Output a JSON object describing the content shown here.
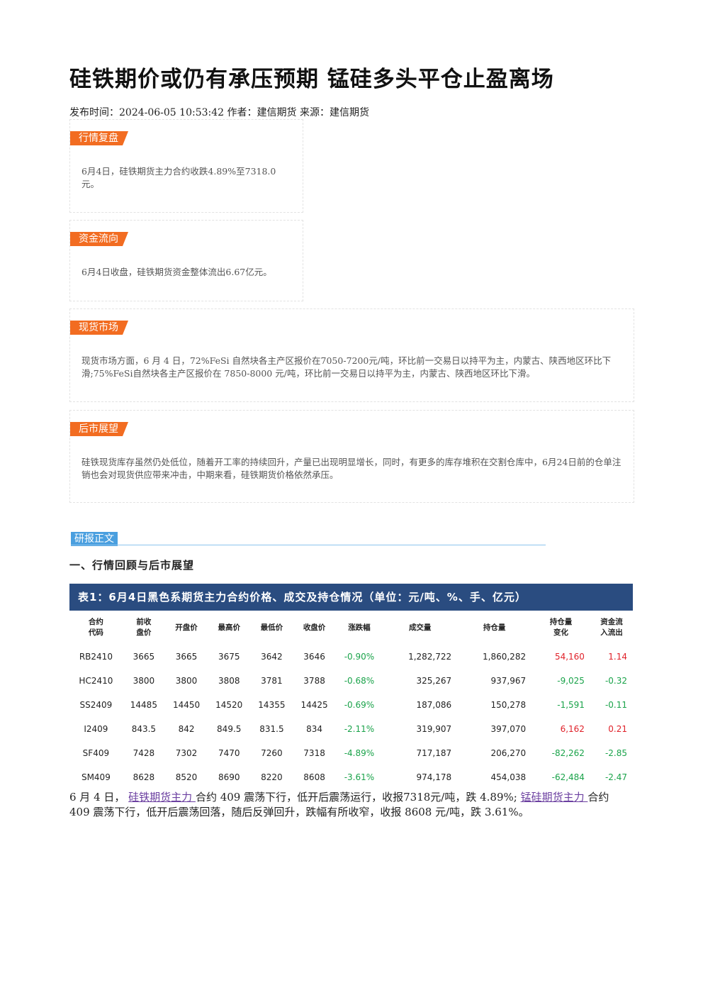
{
  "title": "硅铁期价或仍有承压预期 锰硅多头平仓止盈离场",
  "meta": "发布时间：2024-06-05 10:53:42 作者：建信期货 来源：建信期货",
  "sections": [
    {
      "tag": "行情复盘",
      "text": "6月4日，硅铁期货主力合约收跌4.89%至7318.0元。"
    },
    {
      "tag": "资金流向",
      "text": "6月4日收盘，硅铁期货资金整体流出6.67亿元。"
    },
    {
      "tag": "现货市场",
      "text": "现货市场方面，6 月 4 日，72%FeSi 自然块各主产区报价在7050-7200元/吨，环比前一交易日以持平为主，内蒙古、陕西地区环比下滑;75%FeSi自然块各主产区报价在 7850-8000 元/吨，环比前一交易日以持平为主，内蒙古、陕西地区环比下滑。"
    },
    {
      "tag": "后市展望",
      "text": "硅铁现货库存虽然仍处低位，随着开工率的持续回升，产量已出现明显增长，同时，有更多的库存堆积在交割仓库中，6月24日前的仓单注销也会对现货供应带来冲击，中期来看，硅铁期货价格依然承压。"
    }
  ],
  "report_tag": "研报正文",
  "heading": "一、行情回顾与后市展望",
  "table": {
    "caption": "表1：6月4日黑色系期货主力合约价格、成交及持仓情况（单位：元/吨、%、手、亿元）",
    "headers": [
      [
        "合约",
        "代码"
      ],
      [
        "前收",
        "盘价"
      ],
      [
        "开盘价"
      ],
      [
        "最高价"
      ],
      [
        "最低价"
      ],
      [
        "收盘价"
      ],
      [
        "涨跌幅"
      ],
      [
        "成交量"
      ],
      [
        "持仓量"
      ],
      [
        "持仓量",
        "变化"
      ],
      [
        "资金流",
        "入流出"
      ]
    ],
    "rows": [
      [
        "RB2410",
        "3665",
        "3665",
        "3675",
        "3642",
        "3646",
        "-0.90%",
        "1,282,722",
        "1,860,282",
        "54,160",
        "1.14"
      ],
      [
        "HC2410",
        "3800",
        "3800",
        "3808",
        "3781",
        "3788",
        "-0.68%",
        "325,267",
        "937,967",
        "-9,025",
        "-0.32"
      ],
      [
        "SS2409",
        "14485",
        "14450",
        "14520",
        "14355",
        "14425",
        "-0.69%",
        "187,086",
        "150,278",
        "-1,591",
        "-0.11"
      ],
      [
        "I2409",
        "843.5",
        "842",
        "849.5",
        "831.5",
        "834",
        "-2.11%",
        "319,907",
        "397,070",
        "6,162",
        "0.21"
      ],
      [
        "SF409",
        "7428",
        "7302",
        "7470",
        "7260",
        "7318",
        "-4.89%",
        "717,187",
        "206,270",
        "-82,262",
        "-2.85"
      ],
      [
        "SM409",
        "8628",
        "8520",
        "8690",
        "8220",
        "8608",
        "-3.61%",
        "974,178",
        "454,038",
        "-62,484",
        "-2.47"
      ]
    ]
  },
  "paragraph": [
    {
      "text": "6 月 4 日， "
    },
    {
      "link": "硅铁期货主力 "
    },
    {
      "text": "合约 409 震荡下行，低开后震荡运行，收报7318元/吨，跌 4.89%; "
    },
    {
      "link": "锰硅期货主力 "
    },
    {
      "text": "合约 409 震荡下行，低开后震荡回落，随后反弹回升，跌幅有所收窄，收报 8608 元/吨，跌 3.61%。"
    }
  ]
}
